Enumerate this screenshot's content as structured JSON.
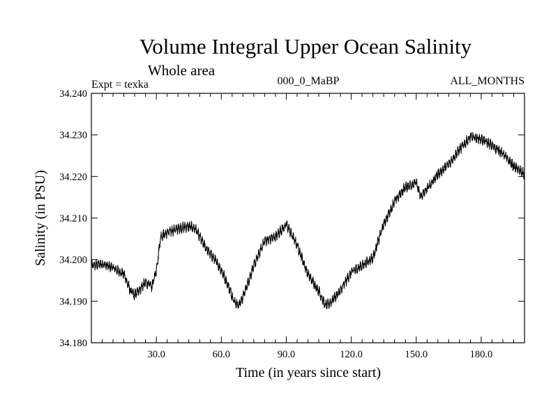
{
  "chart_data": {
    "type": "line",
    "title": "Volume Integral Upper Ocean Salinity",
    "subtitle": "Whole area",
    "experiment_label": "Expt = texka",
    "run_label": "000_0_MaBP",
    "months_label": "ALL_MONTHS",
    "xlabel": "Time (in years since start)",
    "ylabel": "Salinity (in PSU)",
    "xlim": [
      0,
      200
    ],
    "ylim": [
      34.18,
      34.24
    ],
    "x_ticks": [
      30,
      60,
      90,
      120,
      150,
      180
    ],
    "x_tick_labels": [
      "30.0",
      "60.0",
      "90.0",
      "120.0",
      "150.0",
      "180.0"
    ],
    "y_ticks": [
      34.18,
      34.19,
      34.2,
      34.21,
      34.22,
      34.23,
      34.24
    ],
    "y_tick_labels": [
      "34.180",
      "34.190",
      "34.200",
      "34.210",
      "34.220",
      "34.230",
      "34.240"
    ],
    "noise_amplitude": 0.0013,
    "series": [
      {
        "name": "salinity",
        "color": "#000000",
        "x": [
          0,
          5,
          10,
          15,
          18,
          20,
          25,
          28,
          30,
          32,
          35,
          40,
          45,
          48,
          52,
          57,
          60,
          63,
          66,
          68,
          70,
          75,
          80,
          85,
          90,
          92,
          95,
          100,
          105,
          108,
          110,
          115,
          120,
          125,
          130,
          135,
          140,
          145,
          150,
          152,
          155,
          160,
          165,
          170,
          175,
          180,
          185,
          190,
          195,
          200
        ],
        "values": [
          34.1985,
          34.199,
          34.198,
          34.1965,
          34.1925,
          34.1915,
          34.1945,
          34.1935,
          34.1975,
          34.2055,
          34.2065,
          34.2075,
          34.208,
          34.2075,
          34.2035,
          34.2,
          34.1975,
          34.194,
          34.19,
          34.189,
          34.191,
          34.1985,
          34.2045,
          34.2055,
          34.2085,
          34.2065,
          34.2035,
          34.1965,
          34.1925,
          34.189,
          34.1895,
          34.1925,
          34.197,
          34.1985,
          34.2005,
          34.2085,
          34.214,
          34.2175,
          34.2185,
          34.215,
          34.217,
          34.2205,
          34.223,
          34.2265,
          34.2295,
          34.229,
          34.2275,
          34.2255,
          34.2225,
          34.2205
        ]
      }
    ]
  }
}
